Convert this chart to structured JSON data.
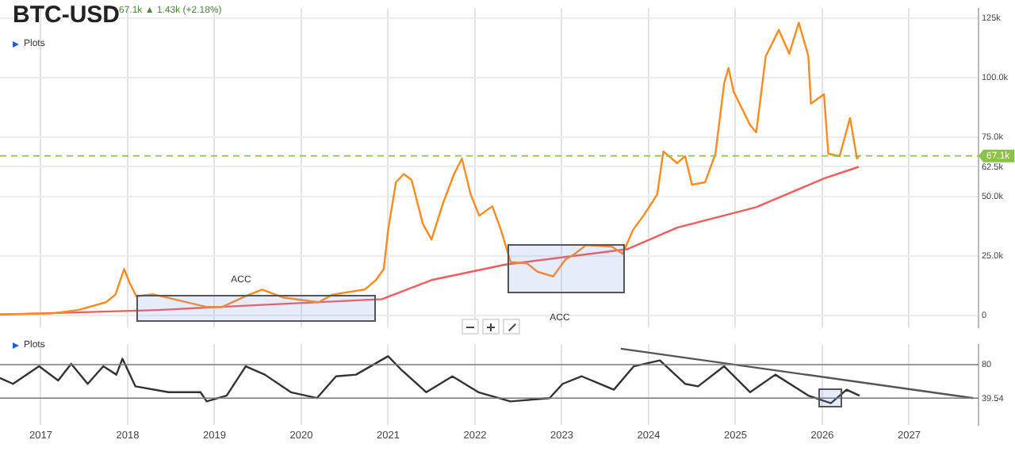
{
  "chart_data": [
    {
      "type": "line",
      "title": "BTC-USD",
      "subtitle": "67.1k ▲ 1.43k (+2.18%)",
      "annotations": [
        "Plots",
        "ACC",
        "ACC"
      ],
      "series": [
        {
          "color": "#ff8a1f",
          "x": [
            2016.53,
            2017.13,
            2017.44,
            2017.75,
            2017.86,
            2017.96,
            2018.02,
            2018.1,
            2018.3,
            2018.53,
            2018.9,
            2019.08,
            2019.4,
            2019.55,
            2019.8,
            2020.2,
            2020.36,
            2020.73,
            2020.86,
            2020.95,
            2021.0,
            2021.09,
            2021.18,
            2021.27,
            2021.4,
            2021.5,
            2021.63,
            2021.76,
            2021.85,
            2021.95,
            2022.05,
            2022.2,
            2022.3,
            2022.35,
            2022.41,
            2022.6,
            2022.72,
            2022.9,
            2023.04,
            2023.15,
            2023.28,
            2023.58,
            2023.7,
            2023.82,
            2023.95,
            2024.1,
            2024.17,
            2024.33,
            2024.42,
            2024.5,
            2024.65,
            2024.77,
            2024.87,
            2024.92,
            2024.98,
            2025.17,
            2025.24,
            2025.35,
            2025.5,
            2025.62,
            2025.73,
            2025.84,
            2025.87,
            2026.02,
            2026.07,
            2026.2,
            2026.32,
            2026.4,
            2026.42
          ],
          "values": [
            600,
            1000,
            2500,
            5700,
            8900,
            19600,
            14000,
            8200,
            9000,
            7000,
            3800,
            3600,
            8900,
            11000,
            7600,
            5700,
            8900,
            11000,
            15000,
            19600,
            36000,
            56000,
            59500,
            57000,
            38600,
            32000,
            47000,
            59500,
            66000,
            51000,
            42000,
            46000,
            36000,
            30000,
            22600,
            22000,
            18500,
            16500,
            23500,
            26000,
            29700,
            29000,
            26000,
            36000,
            42500,
            51000,
            69000,
            64000,
            67000,
            55000,
            56000,
            68000,
            97500,
            104000,
            94000,
            80000,
            77000,
            109000,
            120000,
            110000,
            123000,
            109000,
            89000,
            93000,
            68000,
            67000,
            83000,
            66000,
            67100
          ]
        },
        {
          "color": "#f25c5c",
          "x": [
            2016.53,
            2018.35,
            2019.5,
            2020.93,
            2021.5,
            2022.35,
            2023.76,
            2024.33,
            2025.24,
            2026.02,
            2026.42
          ],
          "values": [
            500,
            2400,
            4500,
            7000,
            15000,
            21500,
            28000,
            37000,
            45600,
            57600,
            62500
          ]
        }
      ],
      "xlim": [
        2016.53,
        2027.8
      ],
      "xticks": [
        2017,
        2018,
        2019,
        2020,
        2021,
        2022,
        2023,
        2024,
        2025,
        2026,
        2027
      ],
      "ylim": [
        -5000,
        129000
      ],
      "yticks": [
        0,
        {
          "value": 25000,
          "label": "25.0k"
        },
        {
          "value": 50000,
          "label": "50.0k"
        },
        {
          "value": 62500,
          "label": "62.5k"
        },
        {
          "value": 75000,
          "label": "75.0k"
        },
        {
          "value": 100000,
          "label": "100.0k"
        },
        {
          "value": 125000,
          "label": "125k"
        }
      ],
      "ref_lines": [
        {
          "axis": "y",
          "value": 67100,
          "label": "67.1k",
          "color": "#8bc34a",
          "line_style": "dashed"
        }
      ],
      "grid": true,
      "legend": false,
      "tick_labels": "y"
    },
    {
      "type": "line",
      "annotations": [
        "Plots"
      ],
      "series": [
        {
          "color": "#333333",
          "x": [
            2016.53,
            2016.68,
            2016.98,
            2017.2,
            2017.35,
            2017.54,
            2017.72,
            2017.87,
            2017.94,
            2018.09,
            2018.47,
            2018.84,
            2018.91,
            2019.14,
            2019.36,
            2019.58,
            2019.88,
            2020.18,
            2020.4,
            2020.63,
            2021.0,
            2021.15,
            2021.44,
            2021.74,
            2022.04,
            2022.41,
            2022.86,
            2023.01,
            2023.23,
            2023.6,
            2023.83,
            2024.13,
            2024.42,
            2024.57,
            2024.87,
            2025.17,
            2025.46,
            2025.84,
            2026.1,
            2026.28,
            2026.43
          ],
          "values": [
            64,
            57,
            78,
            61,
            81,
            57,
            78,
            68,
            87,
            54,
            47,
            47,
            36,
            43,
            78,
            68,
            47,
            40,
            66,
            68,
            90,
            74,
            47,
            66,
            47,
            36,
            40,
            57,
            66,
            50,
            78,
            85,
            57,
            54,
            78,
            47,
            68,
            43,
            34,
            50,
            43
          ]
        },
        {
          "type": "line",
          "color": "#555555",
          "x": [
            2023.68,
            2027.74
          ],
          "values": [
            99,
            40
          ]
        }
      ],
      "xlim": [
        2016.53,
        2027.8
      ],
      "xticks": [
        2017,
        2018,
        2019,
        2020,
        2021,
        2022,
        2023,
        2024,
        2025,
        2026,
        2027
      ],
      "ylim": [
        8,
        104
      ],
      "yticks": [
        80,
        {
          "value": 39.54,
          "label": "39.54"
        }
      ],
      "ref_lines": [
        {
          "axis": "y",
          "value": 80,
          "color": "#777777"
        },
        {
          "axis": "y",
          "value": 40,
          "color": "#777777"
        }
      ],
      "grid": "x",
      "legend": false
    }
  ]
}
